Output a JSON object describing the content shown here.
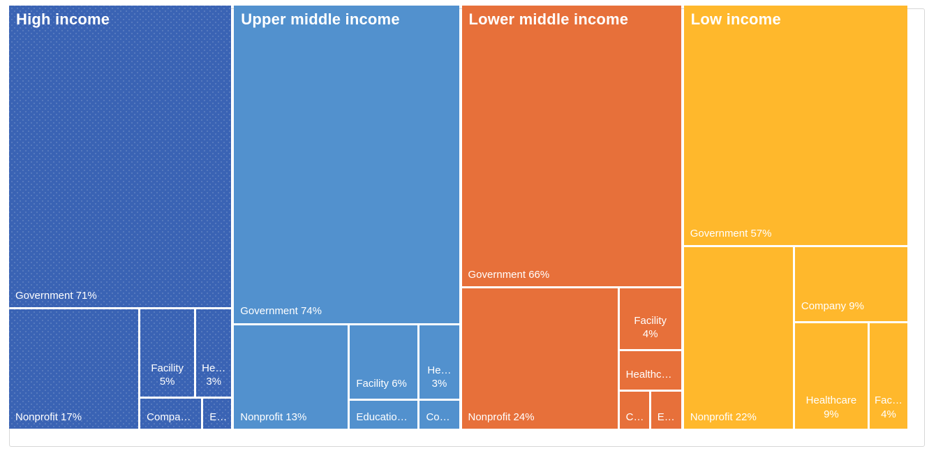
{
  "chart_data": {
    "type": "treemap",
    "title": "",
    "legend": "none",
    "unit": "percent of total within group",
    "groups": [
      {
        "label": "High income",
        "color": "#3a63b4",
        "items": [
          {
            "name": "Government",
            "pct": 71,
            "display": "Government 71%"
          },
          {
            "name": "Nonprofit",
            "pct": 17,
            "display": "Nonprofit 17%"
          },
          {
            "name": "Facility",
            "pct": 5,
            "line1": "Facility",
            "line2": "5%"
          },
          {
            "name": "Healthcare",
            "pct": 3,
            "line1": "He…",
            "line2": "3%"
          },
          {
            "name": "Company",
            "display": "Compa…"
          },
          {
            "name": "Education",
            "display": "E…"
          }
        ]
      },
      {
        "label": "Upper middle income",
        "color": "#5291ce",
        "items": [
          {
            "name": "Government",
            "pct": 74,
            "display": "Government 74%"
          },
          {
            "name": "Nonprofit",
            "pct": 13,
            "display": "Nonprofit 13%"
          },
          {
            "name": "Facility",
            "pct": 6,
            "display": "Facility 6%"
          },
          {
            "name": "Healthcare",
            "pct": 3,
            "line1": "He…",
            "line2": "3%"
          },
          {
            "name": "Education",
            "display": "Educatio…"
          },
          {
            "name": "Company",
            "display": "Co…"
          }
        ]
      },
      {
        "label": "Lower middle income",
        "color": "#e7703a",
        "items": [
          {
            "name": "Government",
            "pct": 66,
            "display": "Government 66%"
          },
          {
            "name": "Nonprofit",
            "pct": 24,
            "display": "Nonprofit 24%"
          },
          {
            "name": "Facility",
            "pct": 4,
            "line1": "Facility",
            "line2": "4%"
          },
          {
            "name": "Healthcare",
            "display": "Healthc…"
          },
          {
            "name": "Company",
            "display": "C…"
          },
          {
            "name": "Education",
            "display": "E…"
          }
        ]
      },
      {
        "label": "Low income",
        "color": "#ffb82c",
        "items": [
          {
            "name": "Government",
            "pct": 57,
            "display": "Government 57%"
          },
          {
            "name": "Nonprofit",
            "pct": 22,
            "display": "Nonprofit 22%"
          },
          {
            "name": "Company",
            "pct": 9,
            "display": "Company 9%"
          },
          {
            "name": "Healthcare",
            "pct": 9,
            "line1": "Healthcare",
            "line2": "9%"
          },
          {
            "name": "Facility",
            "pct": 4,
            "line1": "Fac…",
            "line2": "4%"
          }
        ]
      }
    ]
  }
}
